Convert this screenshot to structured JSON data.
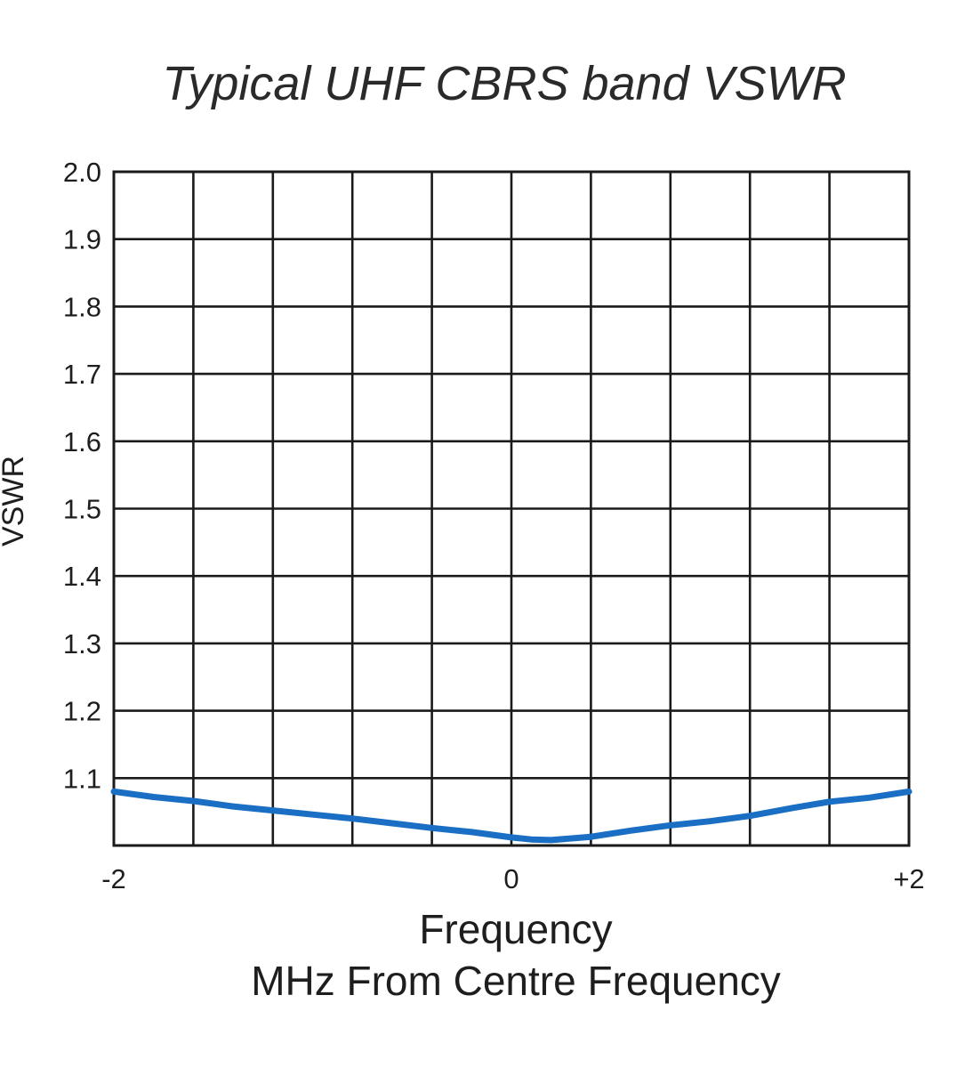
{
  "chart_data": {
    "type": "line",
    "title": "Typical UHF CBRS band VSWR",
    "xlabel": "Frequency",
    "xlabel_sub": "MHz From Centre Frequency",
    "ylabel": "VSWR",
    "xlim": [
      -2,
      2
    ],
    "ylim": [
      1.0,
      2.0
    ],
    "x_ticks": [
      {
        "value": -2,
        "label": "-2"
      },
      {
        "value": 0,
        "label": "0"
      },
      {
        "value": 2,
        "label": "+2"
      }
    ],
    "y_ticks": [
      {
        "value": 1.1,
        "label": "1.1"
      },
      {
        "value": 1.2,
        "label": "1.2"
      },
      {
        "value": 1.3,
        "label": "1.3"
      },
      {
        "value": 1.4,
        "label": "1.4"
      },
      {
        "value": 1.5,
        "label": "1.5"
      },
      {
        "value": 1.6,
        "label": "1.6"
      },
      {
        "value": 1.7,
        "label": "1.7"
      },
      {
        "value": 1.8,
        "label": "1.8"
      },
      {
        "value": 1.9,
        "label": "1.9"
      },
      {
        "value": 2.0,
        "label": "2.0"
      }
    ],
    "grid": {
      "vertical_divisions": 10,
      "horizontal_divisions": 10,
      "visible": true
    },
    "series": [
      {
        "color": "#1a6fc4",
        "x": [
          -2.0,
          -1.8,
          -1.6,
          -1.4,
          -1.2,
          -1.0,
          -0.8,
          -0.6,
          -0.4,
          -0.2,
          0.0,
          0.1,
          0.2,
          0.4,
          0.6,
          0.8,
          1.0,
          1.2,
          1.4,
          1.6,
          1.8,
          2.0
        ],
        "y": [
          1.08,
          1.072,
          1.066,
          1.058,
          1.052,
          1.046,
          1.04,
          1.033,
          1.026,
          1.02,
          1.012,
          1.009,
          1.008,
          1.013,
          1.022,
          1.03,
          1.036,
          1.044,
          1.055,
          1.065,
          1.071,
          1.08
        ]
      }
    ]
  }
}
